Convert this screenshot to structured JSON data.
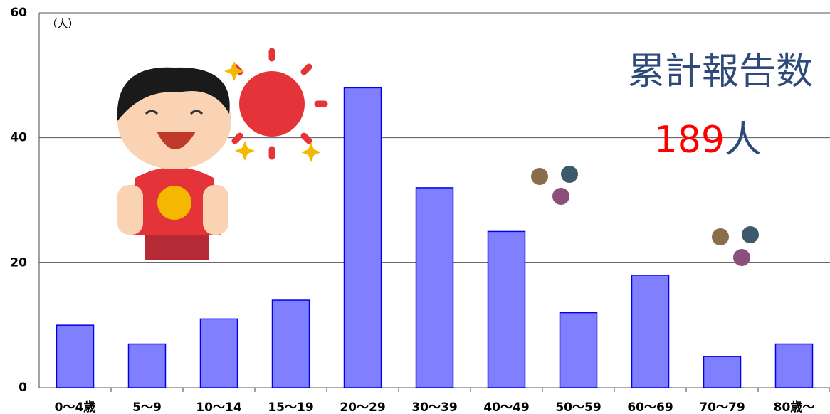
{
  "chart_data": {
    "type": "bar",
    "y_unit_label": "（人）",
    "annotation": "累計報告数",
    "total": 189,
    "total_unit": "人",
    "categories": [
      "0〜4歳",
      "5〜9",
      "10〜14",
      "15〜19",
      "20〜29",
      "30〜39",
      "40〜49",
      "50〜59",
      "60〜69",
      "70〜79",
      "80歳〜"
    ],
    "values": [
      10,
      7,
      11,
      14,
      48,
      32,
      25,
      12,
      18,
      5,
      7
    ],
    "color": "#8080ff",
    "edge_color": "#0000ee",
    "ylim": [
      0,
      60
    ],
    "yticks": [
      0,
      20,
      40,
      60
    ],
    "grid": true
  }
}
